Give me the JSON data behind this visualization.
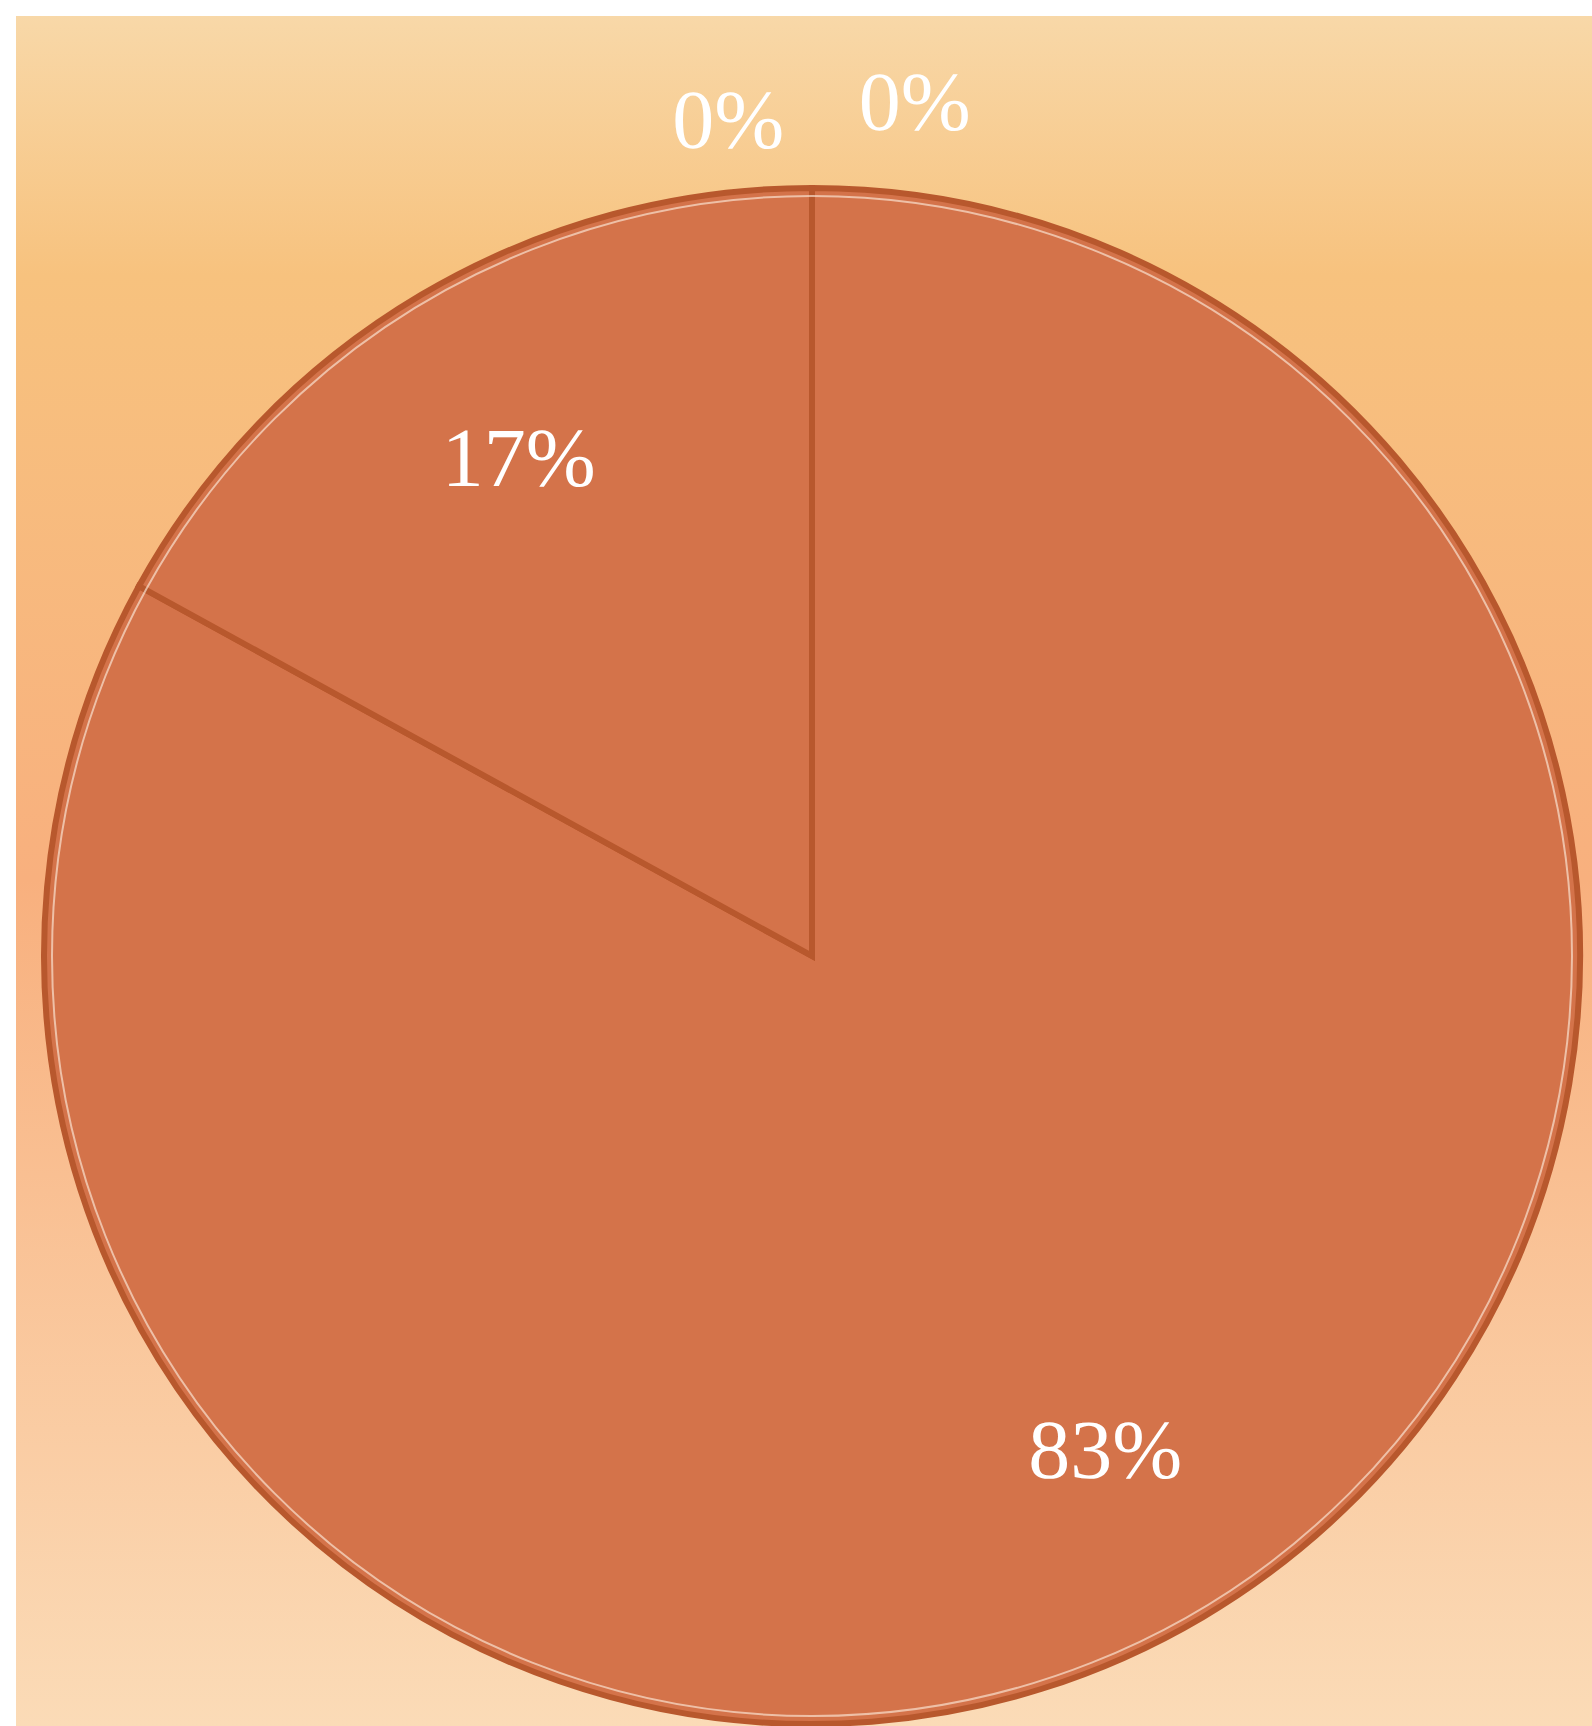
{
  "chart_data": {
    "type": "pie",
    "categories": [
      null,
      null,
      null,
      null
    ],
    "values": [
      83,
      17,
      0,
      0
    ],
    "colors": [
      "#d4734a",
      "#d4734a",
      "#d4734a",
      "#d4734a"
    ],
    "value_labels": [
      "83%",
      "17%",
      "0%",
      "0%"
    ]
  }
}
